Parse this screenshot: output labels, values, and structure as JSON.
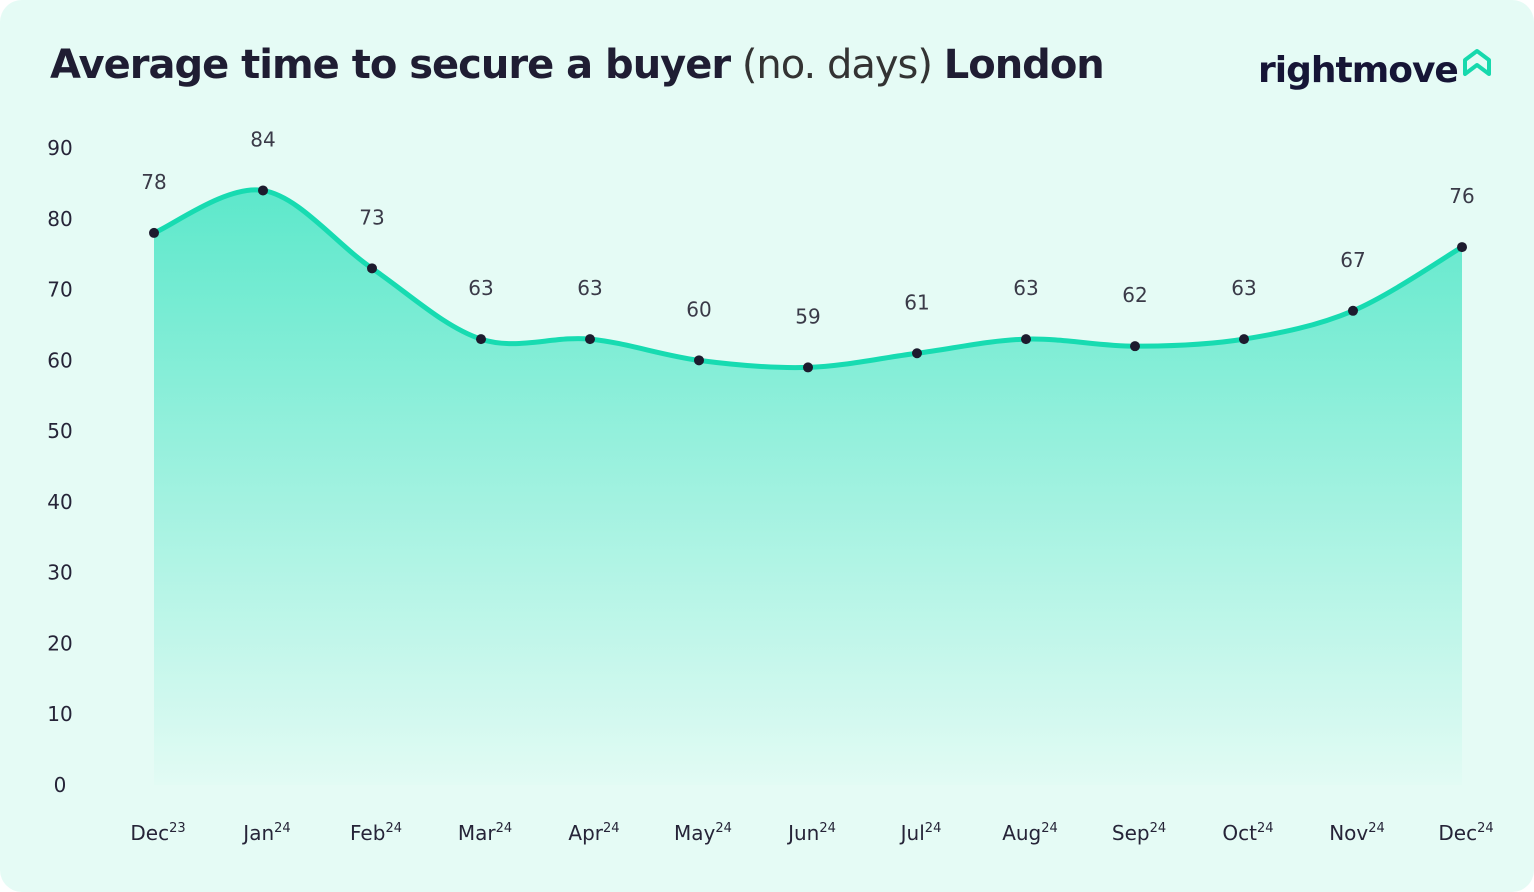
{
  "title": {
    "bold": "Average time to secure a buyer",
    "light": "(no. days)",
    "region": "London"
  },
  "logo": {
    "text": "rightmove",
    "icon": "house-outline-icon",
    "icon_color": "#17d9ad"
  },
  "colors": {
    "line": "#17dbb1",
    "fill_top": "#5de8cb",
    "fill_bottom": "#e2fbf4",
    "point": "#1d1b2e",
    "background": "#e5fbf5"
  },
  "chart_data": {
    "type": "area",
    "title": "Average time to secure a buyer (no. days) London",
    "categories": [
      {
        "month": "Dec",
        "year": "23"
      },
      {
        "month": "Jan",
        "year": "24"
      },
      {
        "month": "Feb",
        "year": "24"
      },
      {
        "month": "Mar",
        "year": "24"
      },
      {
        "month": "Apr",
        "year": "24"
      },
      {
        "month": "May",
        "year": "24"
      },
      {
        "month": "Jun",
        "year": "24"
      },
      {
        "month": "Jul",
        "year": "24"
      },
      {
        "month": "Aug",
        "year": "24"
      },
      {
        "month": "Sep",
        "year": "24"
      },
      {
        "month": "Oct",
        "year": "24"
      },
      {
        "month": "Nov",
        "year": "24"
      },
      {
        "month": "Dec",
        "year": "24"
      }
    ],
    "values": [
      78,
      84,
      73,
      63,
      63,
      60,
      59,
      61,
      63,
      62,
      63,
      67,
      76
    ],
    "yticks": [
      0,
      10,
      20,
      30,
      40,
      50,
      60,
      70,
      80,
      90
    ],
    "ylim": [
      0,
      90
    ],
    "grid": false,
    "smooth": true,
    "data_labels": true
  }
}
